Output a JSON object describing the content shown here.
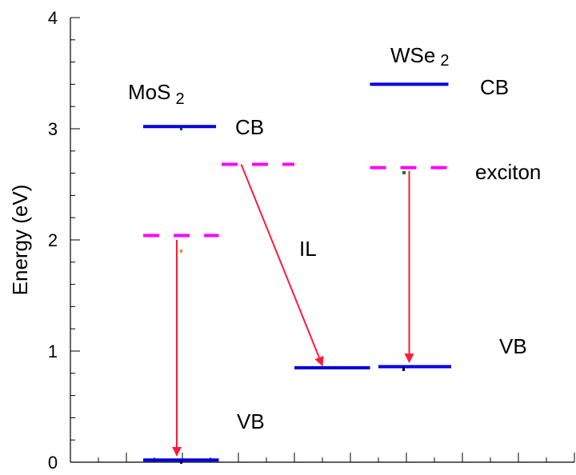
{
  "chart_data": {
    "type": "diagram",
    "ylabel": "Energy (eV)",
    "ylim": [
      0,
      4
    ],
    "yticks": [
      "0",
      "1",
      "2",
      "3",
      "4"
    ],
    "materials": [
      {
        "name": "MoS",
        "subscript": "2"
      },
      {
        "name": "WSe",
        "subscript": "2"
      }
    ],
    "labels": {
      "mos2_cb": "CB",
      "mos2_vb": "VB",
      "wse2_cb": "CB",
      "wse2_vb": "VB",
      "il": "IL",
      "exciton": "exciton"
    },
    "levels": [
      {
        "name": "mos2-cb-level",
        "y": 3.02,
        "x0": 1.3,
        "x1": 2.6,
        "style": "solid",
        "color": "#0000dd"
      },
      {
        "name": "mos2-vb-level",
        "y": 0.02,
        "x0": 1.3,
        "x1": 2.65,
        "style": "solid",
        "color": "#0000dd"
      },
      {
        "name": "mos2-exciton-level",
        "y": 2.04,
        "x0": 1.3,
        "x1": 2.65,
        "style": "dashed",
        "color": "#ff00ff"
      },
      {
        "name": "il-exciton-level",
        "y": 2.68,
        "x0": 2.7,
        "x1": 4.0,
        "style": "dashed",
        "color": "#ff00ff"
      },
      {
        "name": "il-vb-level",
        "y": 0.85,
        "x0": 4.0,
        "x1": 5.35,
        "style": "solid",
        "color": "#0000dd"
      },
      {
        "name": "wse2-vb-level",
        "y": 0.86,
        "x0": 5.5,
        "x1": 6.8,
        "style": "solid",
        "color": "#0000dd"
      },
      {
        "name": "wse2-cb-level",
        "y": 3.4,
        "x0": 5.35,
        "x1": 6.75,
        "style": "solid",
        "color": "#0000dd"
      },
      {
        "name": "wse2-exciton-level",
        "y": 2.65,
        "x0": 5.35,
        "x1": 6.75,
        "style": "dashed",
        "color": "#ff00ff"
      }
    ],
    "transitions": [
      {
        "name": "mos2-recombination-arrow",
        "x0": 1.9,
        "y0": 2.0,
        "x1": 1.9,
        "y1": 0.06,
        "color": "#ff1a3c"
      },
      {
        "name": "il-recombination-arrow",
        "x0": 3.05,
        "y0": 2.68,
        "x1": 4.5,
        "y1": 0.87,
        "color": "#ff1a3c"
      },
      {
        "name": "wse2-recombination-arrow",
        "x0": 6.05,
        "y0": 2.62,
        "x1": 6.05,
        "y1": 0.9,
        "color": "#ff1a3c"
      }
    ],
    "xlim": [
      0,
      9
    ]
  }
}
